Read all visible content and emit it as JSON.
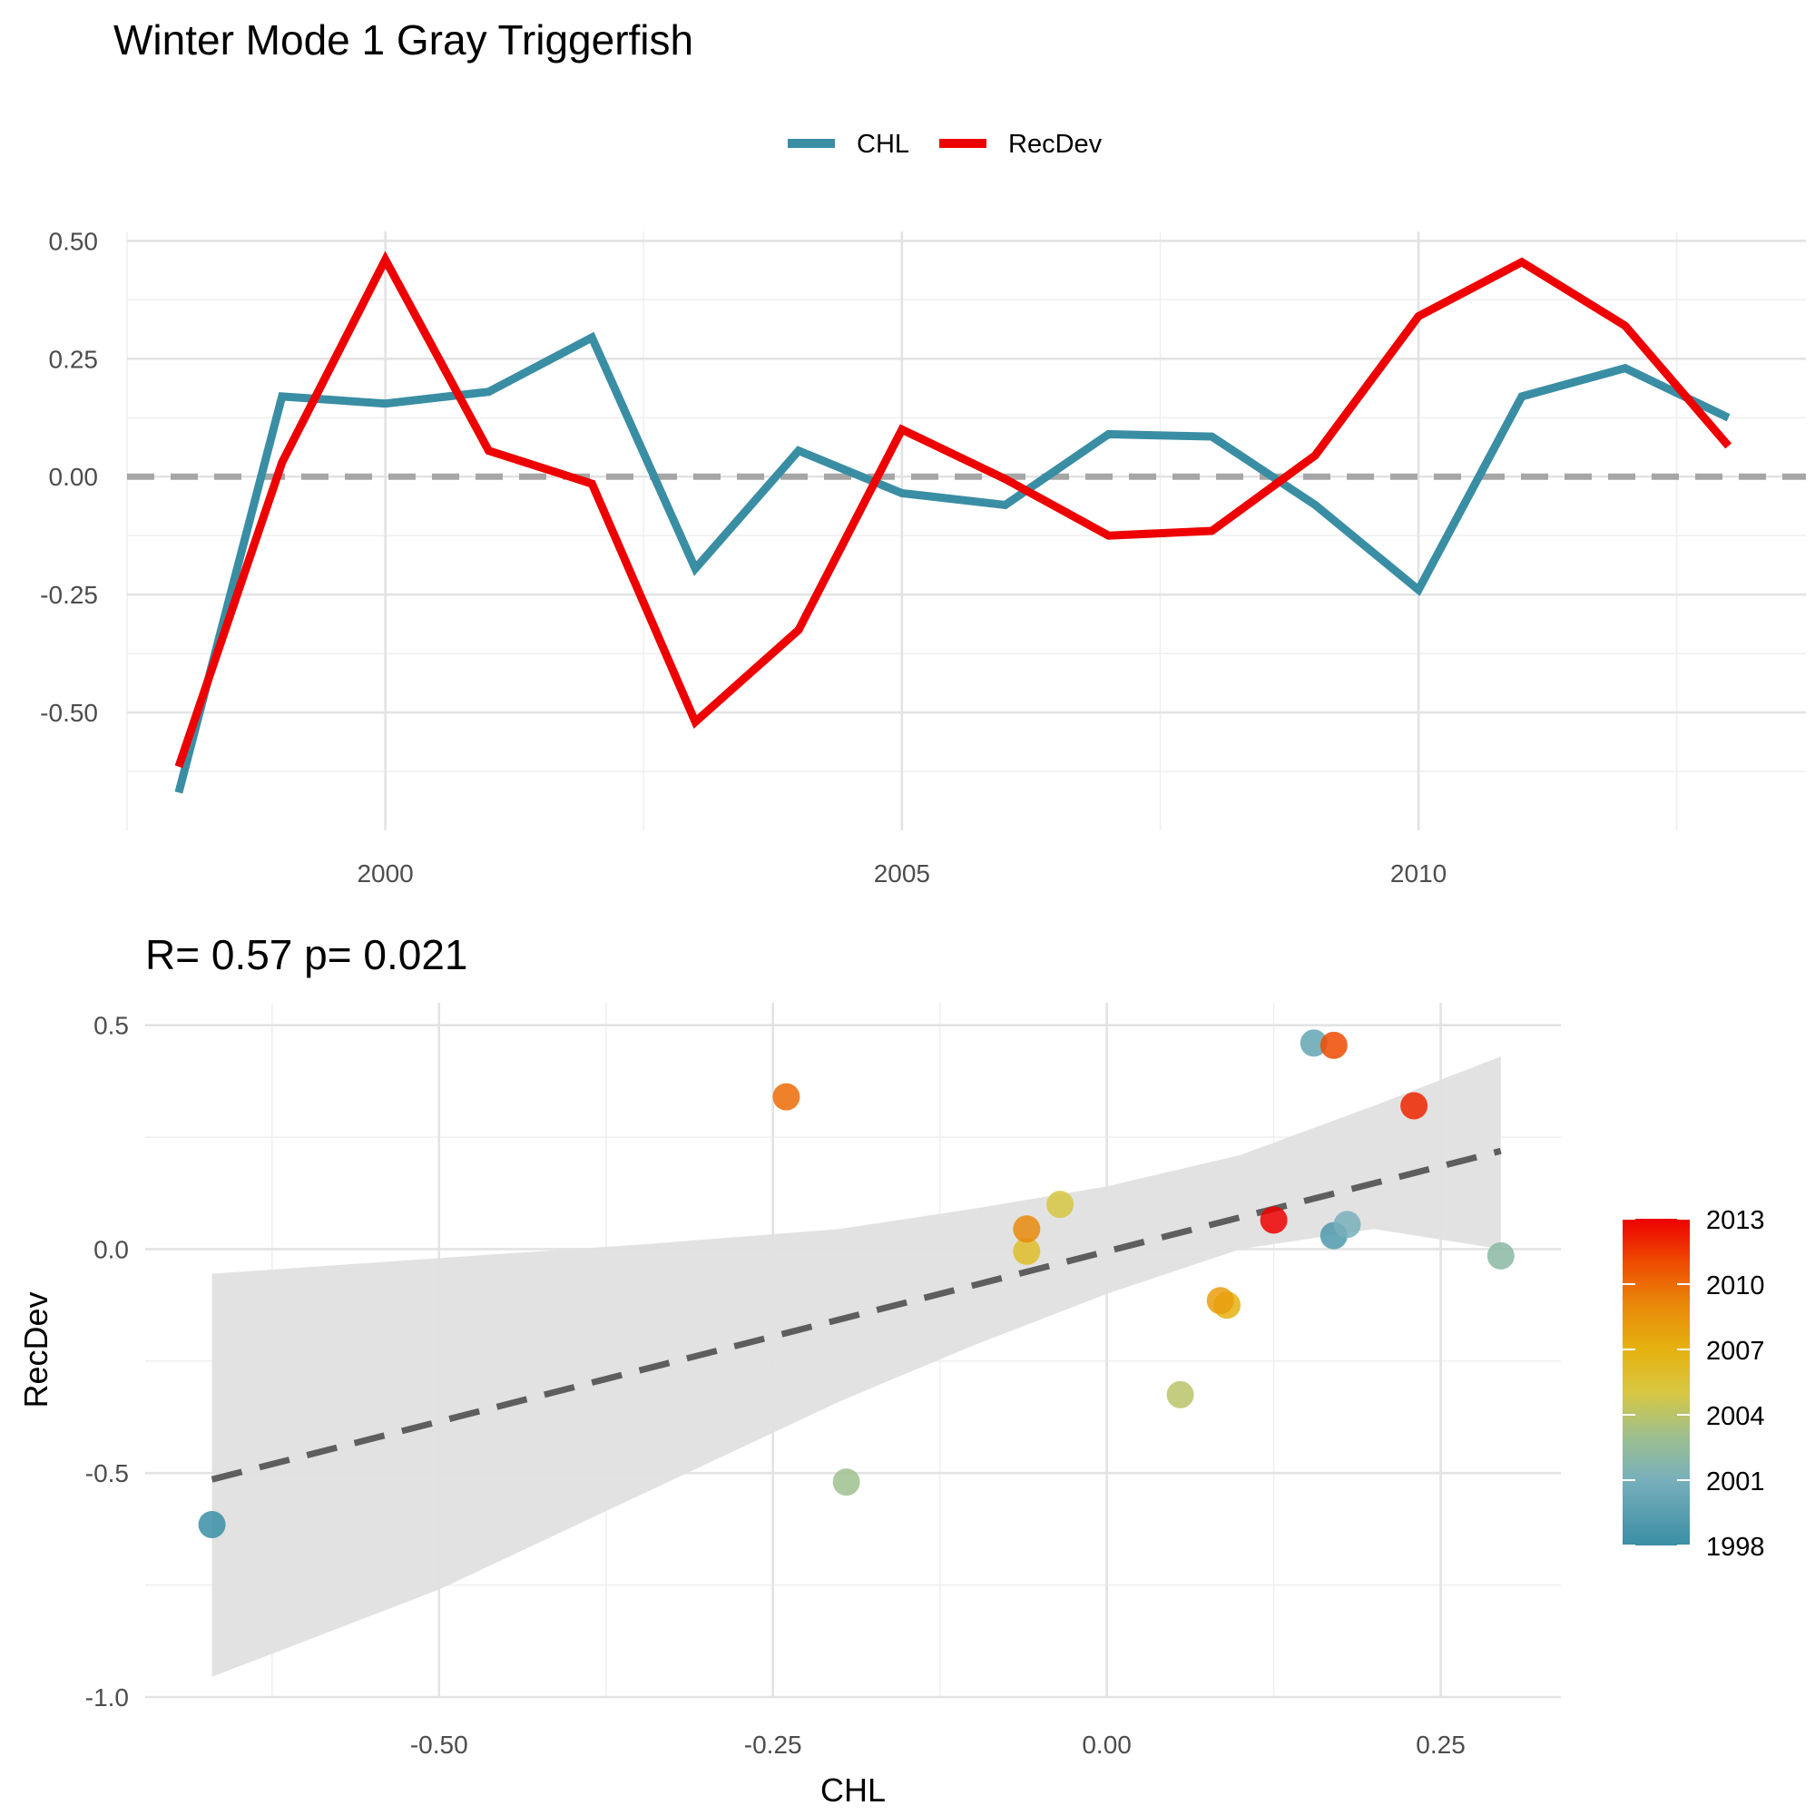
{
  "title": "Winter Mode 1 Gray Triggerfish",
  "chart_data": [
    {
      "type": "line",
      "x": [
        1998,
        1999,
        2000,
        2001,
        2002,
        2003,
        2004,
        2005,
        2006,
        2007,
        2008,
        2009,
        2010,
        2011,
        2012,
        2013
      ],
      "series": [
        {
          "name": "CHL",
          "color": "#3a8ea4",
          "values": [
            -0.67,
            0.17,
            0.155,
            0.18,
            0.295,
            -0.195,
            0.055,
            -0.035,
            -0.06,
            0.09,
            0.085,
            -0.06,
            -0.24,
            0.17,
            0.23,
            0.125
          ]
        },
        {
          "name": "RecDev",
          "color": "#ee0000",
          "values": [
            -0.615,
            0.03,
            0.46,
            0.055,
            -0.015,
            -0.52,
            -0.325,
            0.1,
            -0.005,
            -0.125,
            -0.115,
            0.045,
            0.34,
            0.455,
            0.32,
            0.065
          ]
        }
      ],
      "zero_line": 0,
      "xlim": [
        1997.5,
        2013.75
      ],
      "ylim": [
        -0.75,
        0.52
      ],
      "x_ticks": [
        2000,
        2005,
        2010
      ],
      "y_ticks": [
        0.5,
        0.25,
        0.0,
        -0.25,
        -0.5
      ],
      "y_tick_labels": [
        "0.50",
        "0.25",
        "0.00",
        "-0.25",
        "-0.50"
      ],
      "legend": "top",
      "grid": true
    },
    {
      "type": "scatter",
      "title": "R= 0.57  p= 0.021",
      "xlabel": "CHL",
      "ylabel": "RecDev",
      "points": [
        {
          "year": 1998,
          "x": -0.67,
          "y": -0.615
        },
        {
          "year": 1999,
          "x": 0.17,
          "y": 0.03
        },
        {
          "year": 2000,
          "x": 0.155,
          "y": 0.46
        },
        {
          "year": 2001,
          "x": 0.18,
          "y": 0.055
        },
        {
          "year": 2002,
          "x": 0.295,
          "y": -0.015
        },
        {
          "year": 2003,
          "x": -0.195,
          "y": -0.52
        },
        {
          "year": 2004,
          "x": 0.055,
          "y": -0.325
        },
        {
          "year": 2005,
          "x": -0.035,
          "y": 0.1
        },
        {
          "year": 2006,
          "x": -0.06,
          "y": -0.005
        },
        {
          "year": 2007,
          "x": 0.09,
          "y": -0.125
        },
        {
          "year": 2008,
          "x": 0.085,
          "y": -0.115
        },
        {
          "year": 2009,
          "x": -0.06,
          "y": 0.045
        },
        {
          "year": 2010,
          "x": -0.24,
          "y": 0.34
        },
        {
          "year": 2011,
          "x": 0.17,
          "y": 0.455
        },
        {
          "year": 2012,
          "x": 0.23,
          "y": 0.32
        },
        {
          "year": 2013,
          "x": 0.125,
          "y": 0.065
        }
      ],
      "fit": {
        "slope": 0.76,
        "intercept": -0.005,
        "x_range": [
          -0.67,
          0.295
        ],
        "style": "dashed",
        "color": "#5e5e5e"
      },
      "ribbon": {
        "x": [
          -0.67,
          -0.5,
          -0.35,
          -0.2,
          -0.1,
          0.0,
          0.1,
          0.2,
          0.295
        ],
        "upper": [
          -0.055,
          -0.02,
          0.01,
          0.045,
          0.09,
          0.14,
          0.21,
          0.32,
          0.43
        ],
        "lower": [
          -0.955,
          -0.76,
          -0.55,
          -0.34,
          -0.215,
          -0.1,
          0.0,
          0.045,
          0.0
        ],
        "color": "#e0e0e0"
      },
      "xlim": [
        -0.72,
        0.34
      ],
      "ylim": [
        -1.0,
        0.55
      ],
      "x_ticks": [
        -0.5,
        -0.25,
        0.0,
        0.25
      ],
      "x_tick_labels": [
        "-0.50",
        "-0.25",
        "0.00",
        "0.25"
      ],
      "y_ticks": [
        0.5,
        0.0,
        -0.5,
        -1.0
      ],
      "y_tick_labels": [
        "0.5",
        "0.0",
        "-0.5",
        "-1.0"
      ],
      "colorbar": {
        "ticks": [
          2013,
          2010,
          2007,
          2004,
          2001,
          1998
        ],
        "range": [
          1998,
          2013
        ],
        "stops": [
          {
            "value": 1998,
            "color": "#3a8ea4"
          },
          {
            "value": 2001,
            "color": "#78afbb"
          },
          {
            "value": 2003,
            "color": "#9dbf8f"
          },
          {
            "value": 2005,
            "color": "#d7c742"
          },
          {
            "value": 2007,
            "color": "#e6b210"
          },
          {
            "value": 2009,
            "color": "#e88a0a"
          },
          {
            "value": 2011,
            "color": "#ee4b00"
          },
          {
            "value": 2013,
            "color": "#ee0000"
          }
        ]
      },
      "grid": true
    }
  ]
}
